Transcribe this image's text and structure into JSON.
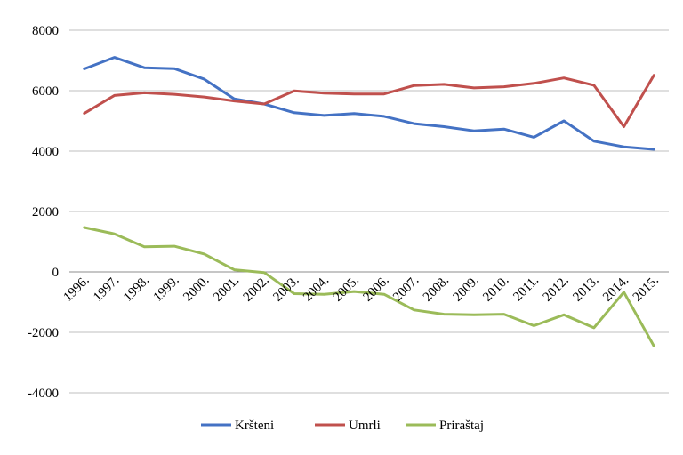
{
  "chart_data": {
    "type": "line",
    "categories": [
      "1996.",
      "1997.",
      "1998.",
      "1999.",
      "2000.",
      "2001.",
      "2002.",
      "2003.",
      "2004.",
      "2005.",
      "2006.",
      "2007.",
      "2008.",
      "2009.",
      "2010.",
      "2011.",
      "2012.",
      "2013.",
      "2014.",
      "2015."
    ],
    "series": [
      {
        "name": "Kršteni",
        "color": "#4472c4",
        "values": [
          6720,
          7100,
          6760,
          6730,
          6380,
          5730,
          5560,
          5270,
          5180,
          5240,
          5150,
          4910,
          4810,
          4670,
          4730,
          4460,
          5000,
          4330,
          4140,
          4060
        ]
      },
      {
        "name": "Umrli",
        "color": "#c0504d",
        "values": [
          5250,
          5840,
          5930,
          5880,
          5790,
          5660,
          5560,
          5990,
          5920,
          5890,
          5890,
          6170,
          6210,
          6090,
          6130,
          6240,
          6420,
          6180,
          4810,
          6510
        ]
      },
      {
        "name": "Priraštaj",
        "color": "#9bbb59",
        "values": [
          1470,
          1260,
          830,
          850,
          590,
          70,
          -20,
          -720,
          -740,
          -650,
          -740,
          -1260,
          -1400,
          -1420,
          -1400,
          -1780,
          -1420,
          -1850,
          -670,
          -2450
        ]
      }
    ],
    "ylim": [
      -4000,
      8000
    ],
    "yticks": [
      "8000",
      "6000",
      "4000",
      "2000",
      "0",
      "-2000",
      "-4000"
    ],
    "ytick_values": [
      8000,
      6000,
      4000,
      2000,
      0,
      -2000,
      -4000
    ],
    "grid": true,
    "legend_position": "bottom"
  }
}
